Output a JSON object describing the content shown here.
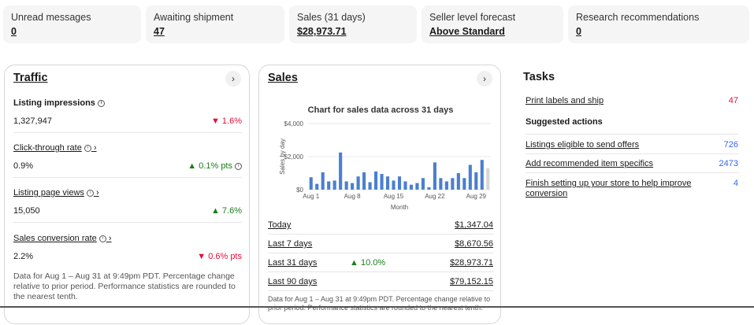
{
  "summary": [
    {
      "label": "Unread messages",
      "value": "0"
    },
    {
      "label": "Awaiting shipment",
      "value": "47"
    },
    {
      "label": "Sales (31 days)",
      "value": "$28,973.71"
    },
    {
      "label": "Seller level forecast",
      "value": "Above Standard"
    },
    {
      "label": "Research recommendations",
      "value": "0"
    }
  ],
  "traffic": {
    "title": "Traffic",
    "metrics": [
      {
        "label": "Listing impressions",
        "value": "1,327,947",
        "change": "1.6%",
        "direction": "down"
      },
      {
        "label": "Click-through rate",
        "value": "0.9%",
        "change": "0.1% pts",
        "direction": "up"
      },
      {
        "label": "Listing page views",
        "value": "15,050",
        "change": "7.6%",
        "direction": "up"
      },
      {
        "label": "Sales conversion rate",
        "value": "2.2%",
        "change": "0.6% pts",
        "direction": "down"
      }
    ],
    "footnote": "Data for Aug 1 – Aug 31 at 9:49pm PDT. Percentage change relative to prior period. Performance statistics are rounded to the nearest tenth."
  },
  "sales": {
    "title": "Sales",
    "rows": [
      {
        "label": "Today",
        "value": "$1,347.04",
        "change": ""
      },
      {
        "label": "Last 7 days",
        "value": "$8,670.56",
        "change": ""
      },
      {
        "label": "Last 31 days",
        "value": "$28,973.71",
        "change": "10.0%"
      },
      {
        "label": "Last 90 days",
        "value": "$79,152.15",
        "change": ""
      }
    ],
    "footnote": "Data for Aug 1 – Aug 31 at 9:49pm PDT. Percentage change relative to prior period. Performance statistics are rounded to the nearest tenth."
  },
  "chart_data": {
    "type": "bar",
    "title": "Chart for sales data across 31 days",
    "xlabel": "Month",
    "ylabel": "Sales by day",
    "ylim": [
      0,
      4000
    ],
    "yticks": [
      "$4,000",
      "$2,000",
      "$0"
    ],
    "xticks": [
      "Aug 1",
      "Aug 8",
      "Aug 15",
      "Aug 22",
      "Aug 29"
    ],
    "categories": [
      "1",
      "2",
      "3",
      "4",
      "5",
      "6",
      "7",
      "8",
      "9",
      "10",
      "11",
      "12",
      "13",
      "14",
      "15",
      "16",
      "17",
      "18",
      "19",
      "20",
      "21",
      "22",
      "23",
      "24",
      "25",
      "26",
      "27",
      "28",
      "29",
      "30",
      "31"
    ],
    "values": [
      750,
      350,
      1050,
      500,
      550,
      2250,
      500,
      400,
      800,
      1050,
      450,
      1100,
      950,
      800,
      550,
      800,
      500,
      300,
      400,
      700,
      150,
      1650,
      700,
      500,
      700,
      1000,
      700,
      1500,
      1050,
      1800,
      1300
    ],
    "colors": {
      "bar": "#4a7fd0",
      "last_bar": "#d6d6d6"
    },
    "grid": true
  },
  "tasks": {
    "title": "Tasks",
    "primary": {
      "label": "Print labels and ship",
      "value": "47"
    },
    "suggested_label": "Suggested actions",
    "items": [
      {
        "label": "Listings eligible to send offers",
        "value": "726"
      },
      {
        "label": "Add recommended item specifics",
        "value": "2473"
      },
      {
        "label": "Finish setting up your store to help improve conversion",
        "value": "4"
      }
    ]
  },
  "icons": {
    "chevron_right": "›",
    "info": "i"
  },
  "colors": {
    "negative": "#e0103a",
    "positive": "#1b7d1b",
    "link_blue": "#3665f3",
    "bar": "#4a7fd0"
  }
}
